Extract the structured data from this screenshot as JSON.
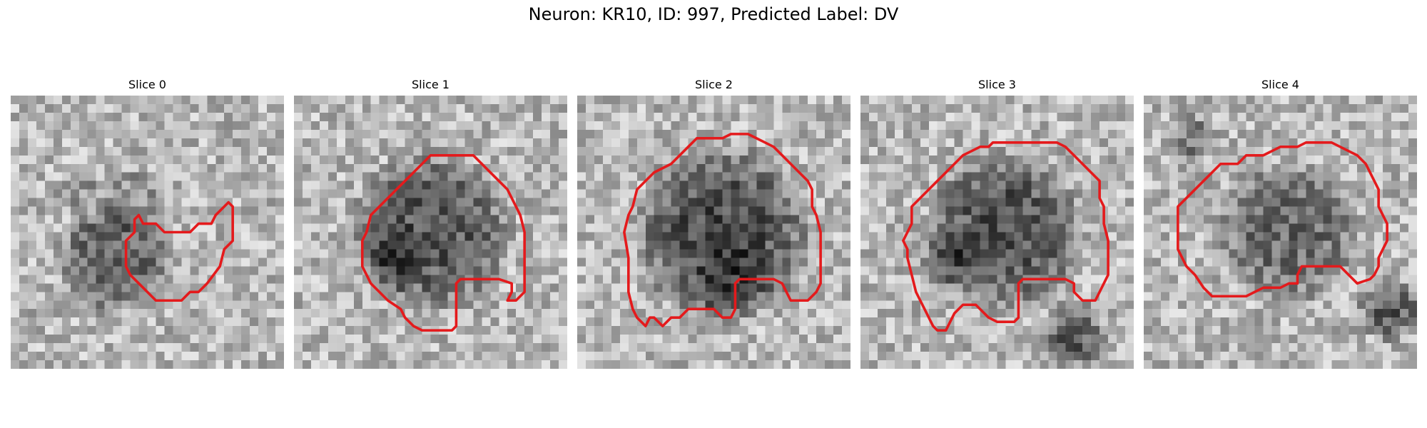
{
  "figure": {
    "title": "Neuron: KR10, ID: 997, Predicted Label: DV",
    "grid_size": 32,
    "contour_color": "#e41a1c",
    "slices": [
      {
        "label": "Slice 0",
        "seed": 11,
        "blobs": [
          [
            12,
            19,
            7,
            0.35
          ],
          [
            14,
            12,
            4,
            0.15
          ],
          [
            8,
            11,
            3,
            0.12
          ]
        ],
        "contour": [
          [
            14.5,
            14.5
          ],
          [
            15,
            14
          ],
          [
            15.5,
            15
          ],
          [
            17,
            15
          ],
          [
            18,
            16
          ],
          [
            21,
            16
          ],
          [
            22,
            15
          ],
          [
            23.5,
            15
          ],
          [
            24,
            14
          ],
          [
            25,
            13
          ],
          [
            25.5,
            12.5
          ],
          [
            26,
            13
          ],
          [
            26,
            17
          ],
          [
            25,
            18
          ],
          [
            24.5,
            20
          ],
          [
            23,
            22
          ],
          [
            22,
            23
          ],
          [
            21,
            23
          ],
          [
            20,
            24
          ],
          [
            17,
            24
          ],
          [
            16,
            23
          ],
          [
            15,
            22
          ],
          [
            14,
            21
          ],
          [
            13.5,
            20
          ],
          [
            13.5,
            17
          ],
          [
            14.5,
            16
          ]
        ]
      },
      {
        "label": "Slice 1",
        "seed": 23,
        "blobs": [
          [
            16,
            16,
            10,
            0.38
          ],
          [
            12,
            19,
            4,
            0.2
          ]
        ],
        "contour": [
          [
            9,
            14
          ],
          [
            12,
            11
          ],
          [
            13,
            10
          ],
          [
            14,
            9
          ],
          [
            15,
            8
          ],
          [
            16,
            7
          ],
          [
            18,
            7
          ],
          [
            19,
            7
          ],
          [
            21,
            7
          ],
          [
            22,
            8
          ],
          [
            23,
            9
          ],
          [
            24,
            10
          ],
          [
            25,
            11
          ],
          [
            26,
            13
          ],
          [
            26.5,
            14
          ],
          [
            27,
            16
          ],
          [
            27,
            23
          ],
          [
            26,
            24
          ],
          [
            25,
            24
          ],
          [
            25.5,
            23
          ],
          [
            25.5,
            22
          ],
          [
            24,
            21.5
          ],
          [
            19.5,
            21.5
          ],
          [
            19,
            22
          ],
          [
            19,
            27
          ],
          [
            18.5,
            27.5
          ],
          [
            15,
            27.5
          ],
          [
            14,
            27
          ],
          [
            13,
            26
          ],
          [
            12.5,
            25
          ],
          [
            11,
            24
          ],
          [
            10,
            23
          ],
          [
            9,
            22
          ],
          [
            8.5,
            21
          ],
          [
            8,
            20
          ],
          [
            8,
            17
          ],
          [
            8.5,
            16
          ]
        ]
      },
      {
        "label": "Slice 2",
        "seed": 37,
        "blobs": [
          [
            17,
            16,
            11,
            0.42
          ],
          [
            18,
            22,
            5,
            0.15
          ]
        ],
        "contour": [
          [
            7,
            11
          ],
          [
            9,
            9
          ],
          [
            11,
            8
          ],
          [
            12,
            7
          ],
          [
            13,
            6
          ],
          [
            14,
            5
          ],
          [
            15,
            5
          ],
          [
            17,
            5
          ],
          [
            18,
            4.5
          ],
          [
            20,
            4.5
          ],
          [
            21,
            5
          ],
          [
            22,
            5.5
          ],
          [
            23,
            6
          ],
          [
            24,
            7
          ],
          [
            25,
            8
          ],
          [
            26,
            9
          ],
          [
            27,
            10
          ],
          [
            27.5,
            11
          ],
          [
            27.5,
            13
          ],
          [
            28,
            14
          ],
          [
            28.5,
            16
          ],
          [
            28.5,
            22
          ],
          [
            28,
            23
          ],
          [
            27,
            24
          ],
          [
            25,
            24
          ],
          [
            24.5,
            23
          ],
          [
            24,
            22
          ],
          [
            23,
            21.5
          ],
          [
            19,
            21.5
          ],
          [
            18.5,
            22
          ],
          [
            18.5,
            25
          ],
          [
            18,
            26
          ],
          [
            17,
            26
          ],
          [
            16,
            25
          ],
          [
            13,
            25
          ],
          [
            12,
            26
          ],
          [
            11,
            26
          ],
          [
            10,
            27
          ],
          [
            9,
            26
          ],
          [
            8.5,
            26
          ],
          [
            8,
            27
          ],
          [
            7,
            26
          ],
          [
            6.5,
            25
          ],
          [
            6,
            23
          ],
          [
            6,
            19
          ],
          [
            5.5,
            16
          ],
          [
            6,
            14
          ],
          [
            6.5,
            13
          ]
        ]
      },
      {
        "label": "Slice 3",
        "seed": 51,
        "blobs": [
          [
            17,
            16,
            10,
            0.4
          ],
          [
            25,
            28,
            4,
            0.35
          ],
          [
            10,
            19,
            4,
            0.18
          ]
        ],
        "contour": [
          [
            6,
            13
          ],
          [
            8,
            11
          ],
          [
            9,
            10
          ],
          [
            10,
            9
          ],
          [
            11,
            8
          ],
          [
            12,
            7
          ],
          [
            13,
            6.5
          ],
          [
            14,
            6
          ],
          [
            15,
            6
          ],
          [
            15.5,
            5.5
          ],
          [
            16,
            5.5
          ],
          [
            23,
            5.5
          ],
          [
            24,
            6
          ],
          [
            25,
            7
          ],
          [
            26,
            8
          ],
          [
            27,
            9
          ],
          [
            28,
            10
          ],
          [
            28,
            12
          ],
          [
            28.5,
            13
          ],
          [
            28.5,
            15
          ],
          [
            29,
            17
          ],
          [
            29,
            21
          ],
          [
            28.5,
            22
          ],
          [
            28,
            23
          ],
          [
            27.5,
            24
          ],
          [
            26,
            24
          ],
          [
            25.5,
            23.5
          ],
          [
            25,
            23
          ],
          [
            25,
            22
          ],
          [
            24,
            21.5
          ],
          [
            19,
            21.5
          ],
          [
            18.5,
            22
          ],
          [
            18.5,
            26
          ],
          [
            18,
            26.5
          ],
          [
            16,
            26.5
          ],
          [
            15,
            26
          ],
          [
            14,
            25
          ],
          [
            13.5,
            24.5
          ],
          [
            12,
            24.5
          ],
          [
            11,
            25.5
          ],
          [
            10.5,
            26.5
          ],
          [
            10,
            27.5
          ],
          [
            9,
            27.5
          ],
          [
            8.5,
            27
          ],
          [
            8,
            26
          ],
          [
            7.5,
            25
          ],
          [
            7,
            24
          ],
          [
            6.5,
            23
          ],
          [
            6,
            21
          ],
          [
            5.5,
            19
          ],
          [
            5.5,
            18
          ],
          [
            5,
            17
          ],
          [
            5.5,
            16
          ],
          [
            6,
            15
          ]
        ]
      },
      {
        "label": "Slice 4",
        "seed": 67,
        "blobs": [
          [
            17,
            16,
            9,
            0.3
          ],
          [
            29,
            25,
            4,
            0.35
          ],
          [
            6,
            5,
            3,
            0.25
          ]
        ],
        "contour": [
          [
            4,
            13
          ],
          [
            7,
            10
          ],
          [
            8,
            9
          ],
          [
            9,
            8
          ],
          [
            11,
            8
          ],
          [
            12,
            7
          ],
          [
            14,
            7
          ],
          [
            15,
            6.5
          ],
          [
            16,
            6
          ],
          [
            18,
            6
          ],
          [
            19,
            5.5
          ],
          [
            22,
            5.5
          ],
          [
            23,
            6
          ],
          [
            24,
            6.5
          ],
          [
            25,
            7
          ],
          [
            26,
            8
          ],
          [
            26.5,
            9
          ],
          [
            27,
            10
          ],
          [
            27.5,
            11
          ],
          [
            27.5,
            13
          ],
          [
            28,
            14
          ],
          [
            28.5,
            15
          ],
          [
            28.5,
            17
          ],
          [
            28,
            18
          ],
          [
            27.5,
            19
          ],
          [
            27.5,
            20
          ],
          [
            27,
            21
          ],
          [
            26.5,
            21.5
          ],
          [
            25,
            22
          ],
          [
            24,
            21
          ],
          [
            23,
            20
          ],
          [
            18.5,
            20
          ],
          [
            18,
            21
          ],
          [
            18,
            22
          ],
          [
            17,
            22
          ],
          [
            16,
            22.5
          ],
          [
            14,
            22.5
          ],
          [
            13,
            23
          ],
          [
            12,
            23.5
          ],
          [
            10,
            23.5
          ],
          [
            8,
            23.5
          ],
          [
            7,
            22.5
          ],
          [
            6,
            21
          ],
          [
            5,
            20
          ],
          [
            4.5,
            19
          ],
          [
            4,
            18
          ]
        ]
      }
    ]
  }
}
